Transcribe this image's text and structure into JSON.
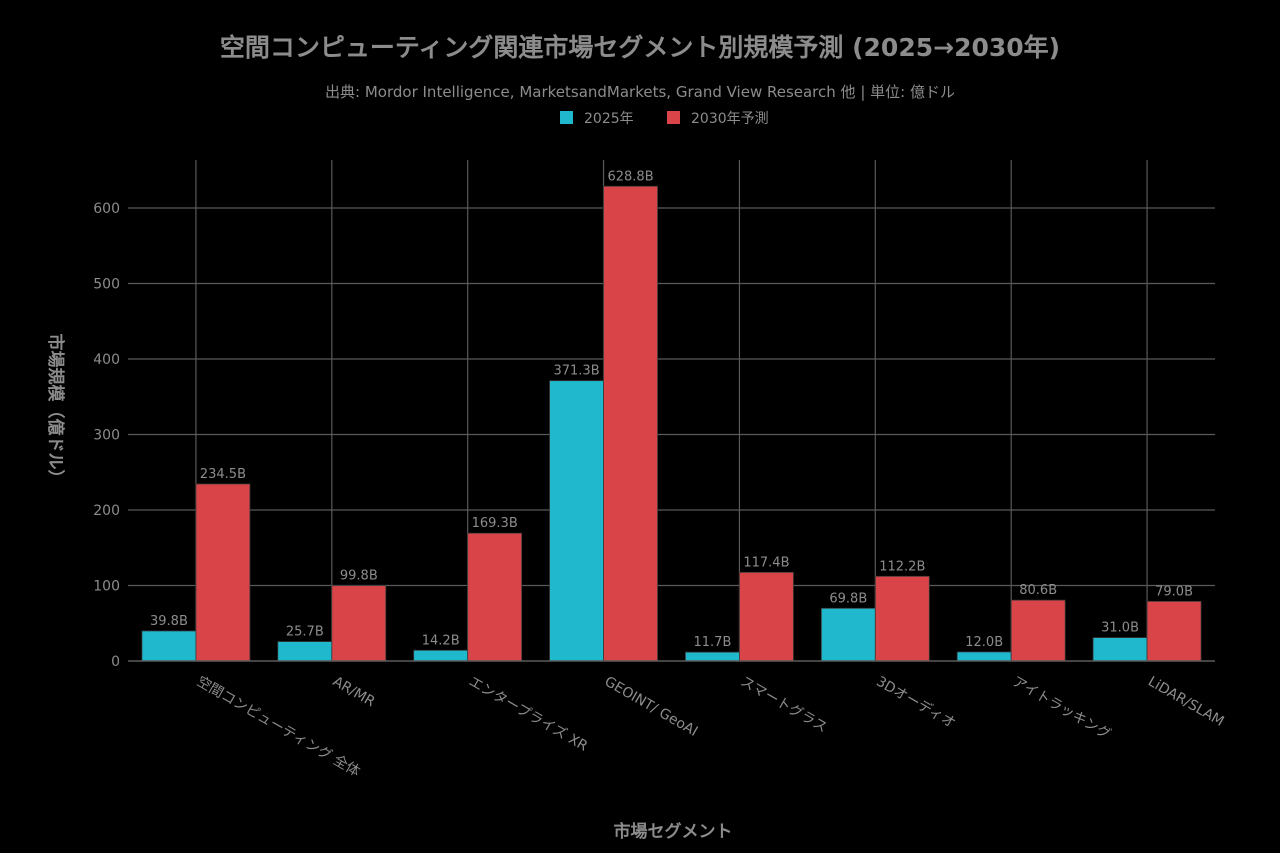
{
  "colors": {
    "background": "#000000",
    "series_2025": "#1fb8cc",
    "series_2030": "#d94448",
    "text": "#8c8c8c",
    "grid": "#5a5a5a"
  },
  "chart_data": {
    "type": "bar",
    "title": "空間コンピューティング関連市場セグメント別規模予測 (2025→2030年)",
    "subtitle": "出典: Mordor Intelligence, MarketsandMarkets, Grand View Research 他 | 単位: 億ドル",
    "xlabel": "市場セグメント",
    "ylabel": "市場規模（億ドル）",
    "ylim": [
      0,
      650
    ],
    "yticks": [
      0,
      100,
      200,
      300,
      400,
      500,
      600
    ],
    "grid": true,
    "legend_position": "top-center",
    "categories": [
      "空間コンピューティング 全体",
      "AR/MR",
      "エンタープライズ XR",
      "GEOINT/ GeoAI",
      "スマートグラス",
      "3Dオーディオ",
      "アイトラッキング",
      "LiDAR/SLAM"
    ],
    "series": [
      {
        "name": "2025年",
        "color": "#1fb8cc",
        "values": [
          39.8,
          25.7,
          14.2,
          371.3,
          11.7,
          69.8,
          12.0,
          31.0
        ],
        "labels": [
          "39.8B",
          "25.7B",
          "14.2B",
          "371.3B",
          "11.7B",
          "69.8B",
          "12.0B",
          "31.0B"
        ]
      },
      {
        "name": "2030年予測",
        "color": "#d94448",
        "values": [
          234.5,
          99.8,
          169.3,
          628.8,
          117.4,
          112.2,
          80.6,
          79.0
        ],
        "labels": [
          "234.5B",
          "99.8B",
          "169.3B",
          "628.8B",
          "117.4B",
          "112.2B",
          "80.6B",
          "79.0B"
        ]
      }
    ]
  }
}
